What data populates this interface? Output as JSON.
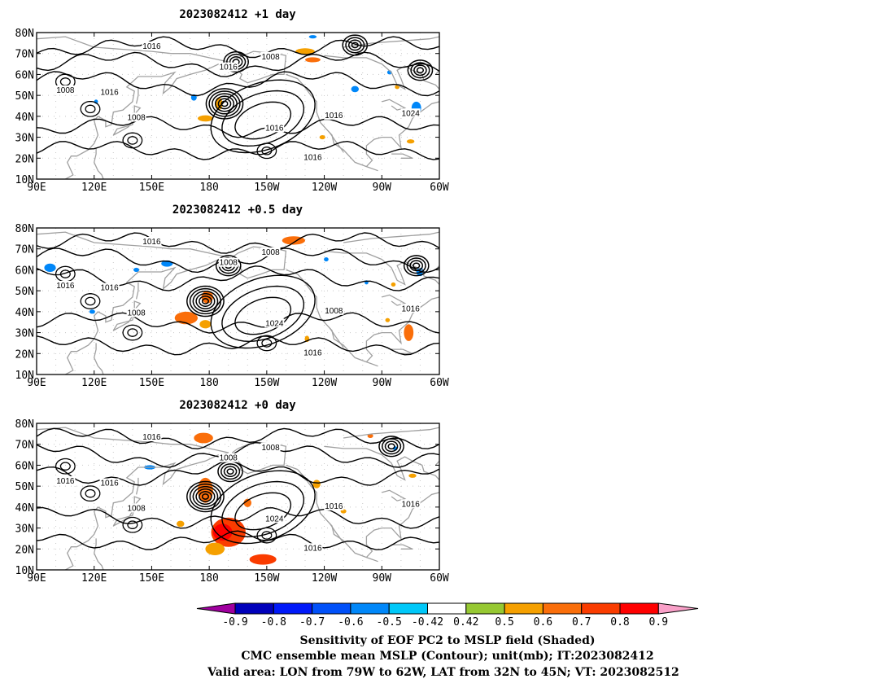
{
  "panels": [
    {
      "title": "2023082412 +1 day",
      "contour_labels": [
        "1016",
        "1008",
        "1008",
        "1016",
        "1008",
        "1016",
        "1016",
        "1024",
        "1016",
        "1016"
      ],
      "lows": [
        [
          -172,
          46
        ],
        [
          -166,
          66
        ],
        [
          -104,
          74
        ],
        [
          -70,
          62
        ]
      ],
      "shading": [
        {
          "v": 0.6,
          "lon": -126,
          "lat": 67,
          "rx": 4,
          "ry": 1.2
        },
        {
          "v": 0.5,
          "lon": -130,
          "lat": 71,
          "rx": 5,
          "ry": 1.5
        },
        {
          "v": 0.5,
          "lon": -175,
          "lat": 46,
          "rx": 2,
          "ry": 3
        },
        {
          "v": 0.5,
          "lon": 178,
          "lat": 39,
          "rx": 4,
          "ry": 1.5
        },
        {
          "v": 0.5,
          "lon": -121,
          "lat": 30,
          "rx": 1.5,
          "ry": 1
        },
        {
          "v": 0.5,
          "lon": -82,
          "lat": 54,
          "rx": 1.2,
          "ry": 1
        },
        {
          "v": 0.5,
          "lon": -75,
          "lat": 28,
          "rx": 2,
          "ry": 1
        },
        {
          "v": -0.5,
          "lon": -72,
          "lat": 44,
          "rx": 2.5,
          "ry": 3
        },
        {
          "v": -0.5,
          "lon": -104,
          "lat": 53,
          "rx": 2,
          "ry": 1.5
        },
        {
          "v": -0.5,
          "lon": 172,
          "lat": 49,
          "rx": 1.5,
          "ry": 1.5
        },
        {
          "v": -0.5,
          "lon": 121,
          "lat": 47,
          "rx": 1,
          "ry": 1
        },
        {
          "v": -0.5,
          "lon": -86,
          "lat": 61,
          "rx": 1.2,
          "ry": 1
        },
        {
          "v": -0.5,
          "lon": -126,
          "lat": 78,
          "rx": 2,
          "ry": 0.8
        }
      ]
    },
    {
      "title": "2023082412 +0.5 day",
      "contour_labels": [
        "1016",
        "1008",
        "1016",
        "1016",
        "1008",
        "1024",
        "1008",
        "1016",
        "1016",
        "1008"
      ],
      "lows": [
        [
          178,
          45
        ],
        [
          -170,
          62
        ],
        [
          -72,
          62
        ]
      ],
      "shading": [
        {
          "v": 0.6,
          "lon": -136,
          "lat": 74,
          "rx": 6,
          "ry": 2
        },
        {
          "v": 0.6,
          "lon": 168,
          "lat": 37,
          "rx": 6,
          "ry": 3
        },
        {
          "v": 0.6,
          "lon": 179,
          "lat": 47,
          "rx": 3,
          "ry": 3
        },
        {
          "v": 0.5,
          "lon": 178,
          "lat": 34,
          "rx": 3,
          "ry": 2
        },
        {
          "v": 0.6,
          "lon": -76,
          "lat": 30,
          "rx": 2.5,
          "ry": 4
        },
        {
          "v": 0.5,
          "lon": -129,
          "lat": 27,
          "rx": 1.2,
          "ry": 1.5
        },
        {
          "v": 0.5,
          "lon": -84,
          "lat": 53,
          "rx": 1.2,
          "ry": 1
        },
        {
          "v": 0.5,
          "lon": -87,
          "lat": 36,
          "rx": 1.2,
          "ry": 1
        },
        {
          "v": -0.5,
          "lon": 97,
          "lat": 61,
          "rx": 3,
          "ry": 2
        },
        {
          "v": -0.5,
          "lon": -70,
          "lat": 59,
          "rx": 2,
          "ry": 2
        },
        {
          "v": -0.5,
          "lon": 158,
          "lat": 63,
          "rx": 3,
          "ry": 1.5
        },
        {
          "v": -0.5,
          "lon": 142,
          "lat": 60,
          "rx": 1.5,
          "ry": 1
        },
        {
          "v": -0.5,
          "lon": 119,
          "lat": 40,
          "rx": 1.5,
          "ry": 1
        },
        {
          "v": -0.5,
          "lon": -119,
          "lat": 65,
          "rx": 1.2,
          "ry": 1
        },
        {
          "v": -0.5,
          "lon": -98,
          "lat": 54,
          "rx": 1,
          "ry": 1
        }
      ]
    },
    {
      "title": "2023082412 +0 day",
      "contour_labels": [
        "1016",
        "1008",
        "1016",
        "1016",
        "1008",
        "1024",
        "1016",
        "1016",
        "1016",
        "1008"
      ],
      "lows": [
        [
          178,
          45
        ],
        [
          -169,
          57
        ],
        [
          -85,
          69
        ]
      ],
      "shading": [
        {
          "v": 0.7,
          "lon": -170,
          "lat": 28,
          "rx": 9,
          "ry": 7
        },
        {
          "v": 0.8,
          "lon": -173,
          "lat": 28,
          "rx": 5,
          "ry": 4
        },
        {
          "v": 0.6,
          "lon": 178,
          "lat": 48,
          "rx": 4,
          "ry": 6
        },
        {
          "v": 0.6,
          "lon": 177,
          "lat": 73,
          "rx": 5,
          "ry": 2.5
        },
        {
          "v": 0.5,
          "lon": -177,
          "lat": 20,
          "rx": 5,
          "ry": 3
        },
        {
          "v": 0.7,
          "lon": -152,
          "lat": 15,
          "rx": 7,
          "ry": 2.5
        },
        {
          "v": 0.6,
          "lon": -160,
          "lat": 42,
          "rx": 2,
          "ry": 2
        },
        {
          "v": 0.5,
          "lon": -124,
          "lat": 51,
          "rx": 2,
          "ry": 2
        },
        {
          "v": 0.5,
          "lon": -74,
          "lat": 55,
          "rx": 2,
          "ry": 1
        },
        {
          "v": 0.5,
          "lon": -110,
          "lat": 38,
          "rx": 1.5,
          "ry": 1
        },
        {
          "v": 0.5,
          "lon": 165,
          "lat": 32,
          "rx": 2,
          "ry": 1.5
        },
        {
          "v": 0.6,
          "lon": -96,
          "lat": 74,
          "rx": 1.5,
          "ry": 1
        },
        {
          "v": -0.5,
          "lon": 149,
          "lat": 59,
          "rx": 3,
          "ry": 1
        },
        {
          "v": -0.5,
          "lon": -83,
          "lat": 68,
          "rx": 1.2,
          "ry": 1
        }
      ]
    }
  ],
  "axes": {
    "lon_range": [
      90,
      300
    ],
    "lat_range": [
      10,
      80
    ],
    "lat_ticks": [
      "80N",
      "70N",
      "60N",
      "50N",
      "40N",
      "30N",
      "20N",
      "10N"
    ],
    "lon_ticks": [
      "90E",
      "120E",
      "150E",
      "180",
      "150W",
      "120W",
      "90W",
      "60W"
    ]
  },
  "colorbar": {
    "ticks": [
      "-0.9",
      "-0.8",
      "-0.7",
      "-0.6",
      "-0.5",
      "-0.42",
      "0.42",
      "0.5",
      "0.6",
      "0.7",
      "0.8",
      "0.9"
    ],
    "colors": [
      "#a0009f",
      "#0000ba",
      "#0019f9",
      "#0050f9",
      "#0087f9",
      "#00c8f9",
      "#ffffff",
      "#96c832",
      "#f5a000",
      "#fa6e0a",
      "#fa3c00",
      "#ff0000",
      "#f9a0c8"
    ]
  },
  "colors": {
    "contour": "#000000",
    "coast": "#a0a0a0",
    "grid": "#c8c8c8"
  },
  "caption": {
    "line1": "Sensitivity of EOF PC2 to MSLP field (Shaded)",
    "line2": "CMC ensemble mean MSLP (Contour); unit(mb); IT:2023082412",
    "line3": "Valid area: LON from 79W to 62W, LAT from 32N to 45N; VT: 2023082512"
  }
}
